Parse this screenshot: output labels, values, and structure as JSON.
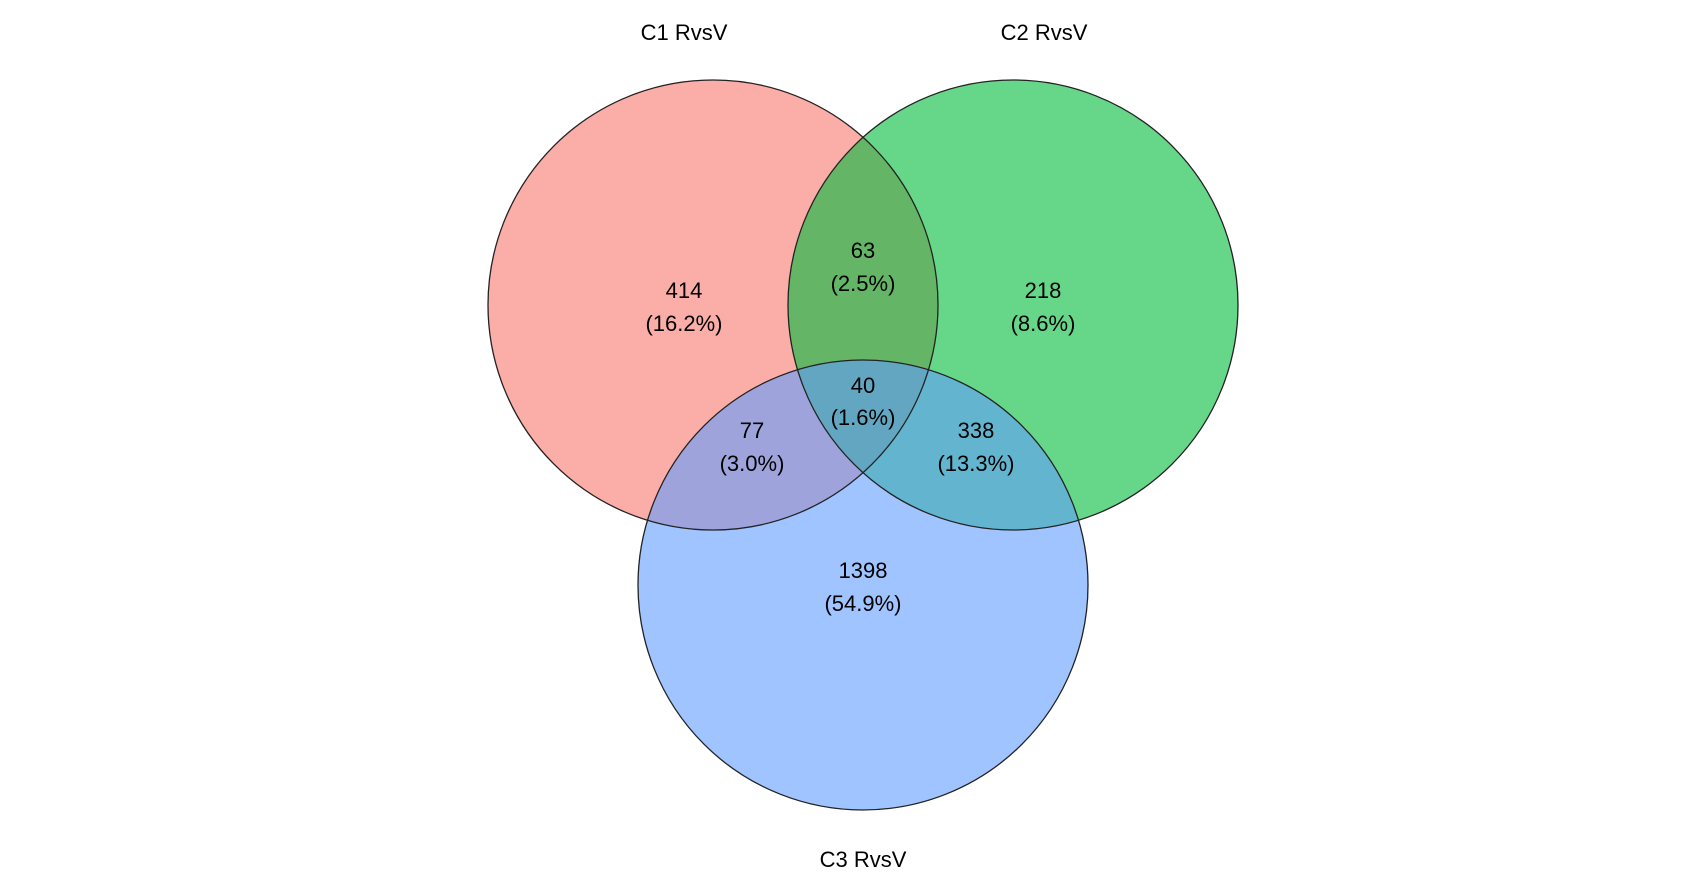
{
  "title": "",
  "sets": [
    {
      "id": "c1",
      "label": "C1 RvsV",
      "color": "#F8766D"
    },
    {
      "id": "c2",
      "label": "C2 RvsV",
      "color": "#00BA38"
    },
    {
      "id": "c3",
      "label": "C3 RvsV",
      "color": "#619CFF"
    }
  ],
  "regions": {
    "c1_only": {
      "count": "414",
      "percent": "(16.2%)"
    },
    "c2_only": {
      "count": "218",
      "percent": "(8.6%)"
    },
    "c3_only": {
      "count": "1398",
      "percent": "(54.9%)"
    },
    "c1_c2": {
      "count": "63",
      "percent": "(2.5%)"
    },
    "c1_c3": {
      "count": "77",
      "percent": "(3.0%)"
    },
    "c2_c3": {
      "count": "338",
      "percent": "(13.3%)"
    },
    "c1_c2_c3": {
      "count": "40",
      "percent": "(1.6%)"
    }
  }
}
